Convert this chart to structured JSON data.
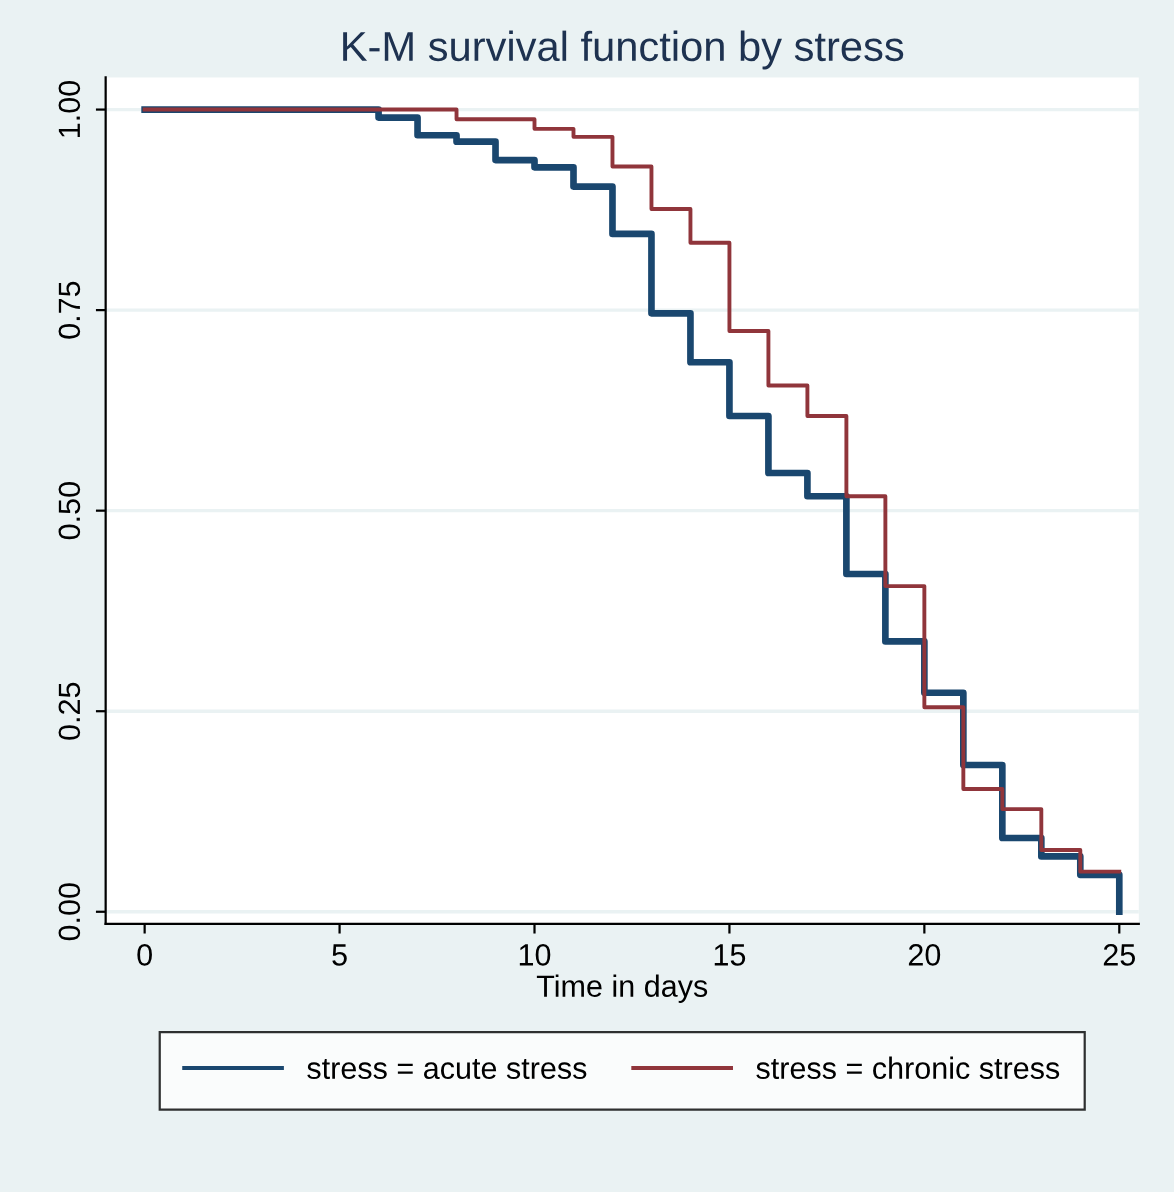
{
  "chart_data": {
    "type": "step",
    "title": "K-M survival function by stress",
    "xlabel": "Time in days",
    "xlim": [
      -1,
      25.5
    ],
    "ylim": [
      -0.015,
      1.04
    ],
    "xticks": [
      0,
      5,
      10,
      15,
      20,
      25
    ],
    "yticks": [
      {
        "value": 0,
        "label": "0.00"
      },
      {
        "value": 0.25,
        "label": "0.25"
      },
      {
        "value": 0.5,
        "label": "0.50"
      },
      {
        "value": 0.75,
        "label": "0.75"
      },
      {
        "value": 1,
        "label": "1.00"
      }
    ],
    "grid": "y",
    "legend": "bottom",
    "marker": "none",
    "line_style": "solid",
    "series": [
      {
        "name": "stress = acute stress",
        "color": "#1a476f",
        "x": [
          0,
          6,
          7,
          8,
          9,
          10,
          11,
          12,
          13,
          14,
          15,
          16,
          17,
          18,
          19,
          20,
          21,
          22,
          23,
          24,
          25
        ],
        "values": [
          1.0,
          0.99,
          0.968,
          0.96,
          0.937,
          0.928,
          0.904,
          0.845,
          0.746,
          0.685,
          0.618,
          0.547,
          0.518,
          0.421,
          0.337,
          0.273,
          0.183,
          0.092,
          0.069,
          0.046,
          0.0
        ]
      },
      {
        "name": "stress = chronic stress",
        "color": "#90353b",
        "x": [
          0,
          8,
          10,
          11,
          12,
          13,
          14,
          15,
          16,
          17,
          18,
          19,
          20,
          21,
          22,
          23,
          24,
          25
        ],
        "values": [
          1.0,
          0.988,
          0.976,
          0.966,
          0.929,
          0.876,
          0.834,
          0.724,
          0.656,
          0.618,
          0.518,
          0.406,
          0.255,
          0.153,
          0.128,
          0.077,
          0.05,
          0.05
        ]
      }
    ]
  }
}
